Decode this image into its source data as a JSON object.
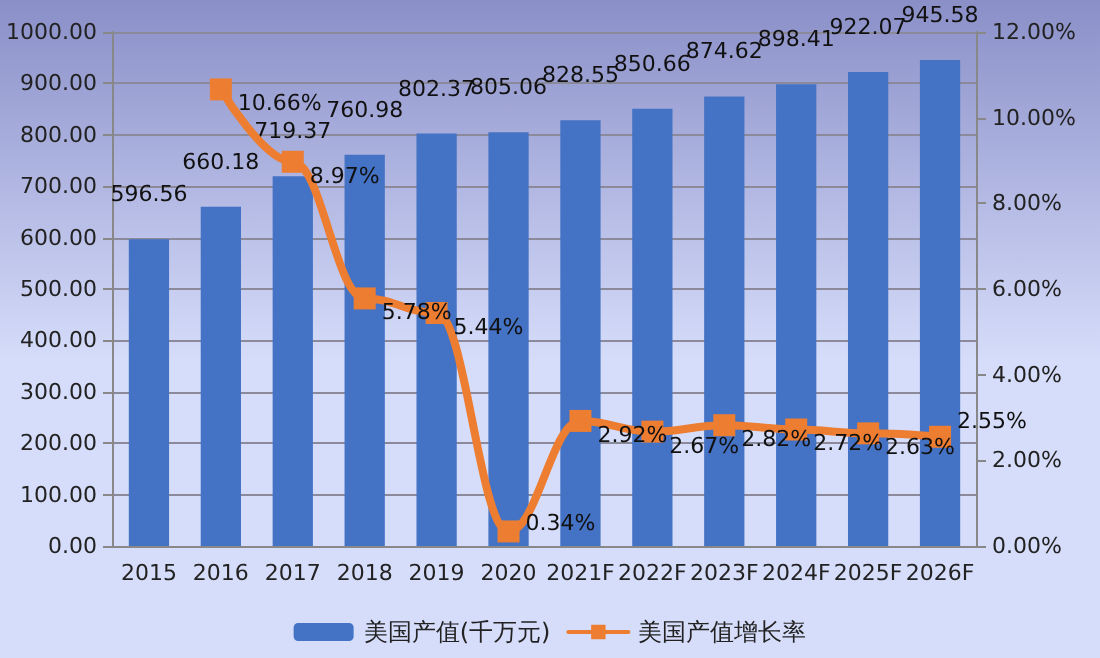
{
  "chart_data": {
    "type": "bar",
    "categories": [
      "2015",
      "2016",
      "2017",
      "2018",
      "2019",
      "2020",
      "2021F",
      "2022F",
      "2023F",
      "2024F",
      "2025F",
      "2026F"
    ],
    "series": [
      {
        "name": "美国产值(千万元)",
        "type": "bar",
        "color": "#4472c4",
        "values": [
          596.56,
          660.18,
          719.37,
          760.98,
          802.37,
          805.06,
          828.55,
          850.66,
          874.62,
          898.41,
          922.07,
          945.58
        ],
        "data_labels": true
      },
      {
        "name": "美国产值增长率",
        "type": "line",
        "axis": "y2",
        "color": "#ed7d31",
        "marker": "square",
        "values": [
          null,
          10.66,
          8.97,
          5.78,
          5.44,
          0.34,
          2.92,
          2.67,
          2.82,
          2.72,
          2.63,
          2.55
        ],
        "value_labels": [
          null,
          "10.66%",
          "8.97%",
          "5.78%",
          "5.44%",
          "0.34%",
          "2.92%",
          "2.67%",
          "2.82%",
          "2.72%",
          "2.63%",
          "2.55%"
        ]
      }
    ],
    "ylim": [
      0,
      1000
    ],
    "yticks": [
      {
        "value": 0,
        "label": "0.00"
      },
      {
        "value": 100,
        "label": "100.00"
      },
      {
        "value": 200,
        "label": "200.00"
      },
      {
        "value": 300,
        "label": "300.00"
      },
      {
        "value": 400,
        "label": "400.00"
      },
      {
        "value": 500,
        "label": "500.00"
      },
      {
        "value": 600,
        "label": "600.00"
      },
      {
        "value": 700,
        "label": "700.00"
      },
      {
        "value": 800,
        "label": "800.00"
      },
      {
        "value": 900,
        "label": "900.00"
      },
      {
        "value": 1000,
        "label": "1000.00"
      }
    ],
    "y2lim": [
      0,
      12
    ],
    "y2ticks": [
      {
        "value": 0,
        "label": "0.00%"
      },
      {
        "value": 2,
        "label": "2.00%"
      },
      {
        "value": 4,
        "label": "4.00%"
      },
      {
        "value": 6,
        "label": "6.00%"
      },
      {
        "value": 8,
        "label": "8.00%"
      },
      {
        "value": 10,
        "label": "10.00%"
      },
      {
        "value": 12,
        "label": "12.00%"
      }
    ],
    "grid": "y",
    "legend": "bottom"
  }
}
